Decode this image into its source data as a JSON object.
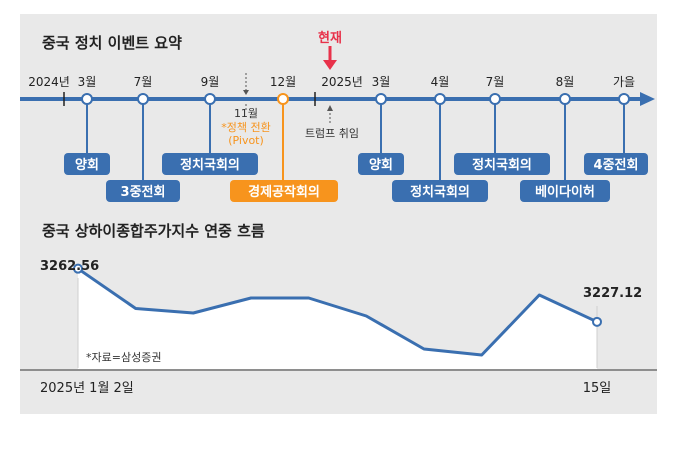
{
  "timeline": {
    "title": "중국 정치 이벤트 요약",
    "now_label": "현재",
    "ticks": [
      "2024년",
      "3월",
      "7월",
      "9월",
      "12월",
      "2025년",
      "3월",
      "4월",
      "7월",
      "8월",
      "가을"
    ],
    "note_11": "11월",
    "note_pivot_1": "*정책 전환",
    "note_pivot_2": "(Pivot)",
    "note_trump": "트럼프 취임",
    "events": [
      "양회",
      "3중전회",
      "정치국회의",
      "경제공작회의",
      "양회",
      "정치국회의",
      "정치국회의",
      "베이다이허",
      "4중전회"
    ],
    "colors": {
      "axis": "#3a6fb0",
      "event_box": "#3a6fb0",
      "highlight": "#f7941d",
      "now": "#e8314a"
    }
  },
  "chart_data": {
    "type": "line",
    "title": "중국 상하이종합주가지수 연중 흐름",
    "x_start_label": "2025년 1월 2일",
    "x_end_label": "15일",
    "source": "*자료=삼성증권",
    "start_value_label": "3262.56",
    "end_value_label": "3227.12",
    "series": [
      {
        "values": [
          3262.56,
          3236,
          3233,
          3243,
          3243,
          3231,
          3209,
          3205,
          3245,
          3227.12
        ]
      }
    ],
    "ylim": [
      3195,
      3275
    ],
    "grid": false,
    "color": "#3a6fb0"
  }
}
